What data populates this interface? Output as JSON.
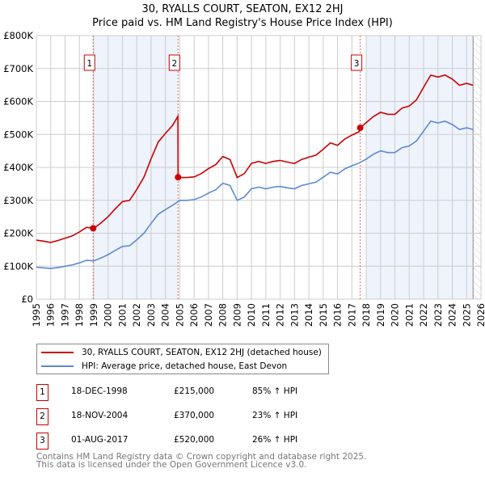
{
  "title": "30, RYALLS COURT, SEATON, EX12 2HJ",
  "subtitle": "Price paid vs. HM Land Registry's House Price Index (HPI)",
  "colors": {
    "property": "#cc0000",
    "hpi": "#5b8bd0",
    "shade": "#eef3fc",
    "grid": "#cccccc"
  },
  "chart_data": {
    "type": "line",
    "xlim": [
      1995,
      2026
    ],
    "ylim": [
      0,
      800000
    ],
    "y_ticks": [
      0,
      100000,
      200000,
      300000,
      400000,
      500000,
      600000,
      700000,
      800000
    ],
    "y_tick_labels": [
      "£0",
      "£100K",
      "£200K",
      "£300K",
      "£400K",
      "£500K",
      "£600K",
      "£700K",
      "£800K"
    ],
    "x_ticks": [
      "1995",
      "1996",
      "1997",
      "1998",
      "1999",
      "2000",
      "2001",
      "2002",
      "2003",
      "2004",
      "2005",
      "2006",
      "2007",
      "2008",
      "2009",
      "2010",
      "2011",
      "2012",
      "2013",
      "2014",
      "2015",
      "2016",
      "2017",
      "2018",
      "2019",
      "2020",
      "2021",
      "2022",
      "2023",
      "2024",
      "2025",
      "2026"
    ],
    "shaded_ranges": [
      [
        1998.96,
        2004.88
      ],
      [
        2018.0,
        2025.45
      ]
    ],
    "hatched_from": 2025.45,
    "series": [
      {
        "name": "30, RYALLS COURT, SEATON, EX12 2HJ (detached house)",
        "color": "#cc0000",
        "x": [
          1995,
          1995.5,
          1996,
          1996.5,
          1997,
          1997.5,
          1998,
          1998.5,
          1999,
          1999.5,
          2000,
          2000.5,
          2001,
          2001.5,
          2002,
          2002.5,
          2003,
          2003.5,
          2004,
          2004.5,
          2004.87,
          2004.88,
          2005,
          2005.5,
          2006,
          2006.5,
          2007,
          2007.5,
          2008,
          2008.5,
          2009,
          2009.5,
          2010,
          2010.5,
          2011,
          2011.5,
          2012,
          2012.5,
          2013,
          2013.5,
          2014,
          2014.5,
          2015,
          2015.5,
          2016,
          2016.5,
          2017,
          2017.5,
          2017.58,
          2018,
          2018.5,
          2019,
          2019.5,
          2020,
          2020.5,
          2021,
          2021.5,
          2022,
          2022.5,
          2023,
          2023.5,
          2024,
          2024.5,
          2025,
          2025.45
        ],
        "values": [
          179000,
          176000,
          172000,
          178000,
          185000,
          192000,
          204000,
          218000,
          215000,
          231000,
          250000,
          274000,
          296000,
          300000,
          333000,
          370000,
          426000,
          477000,
          503000,
          527000,
          555000,
          370000,
          369000,
          369000,
          371000,
          381000,
          396000,
          408000,
          433000,
          424000,
          369000,
          381000,
          412000,
          418000,
          412000,
          418000,
          421000,
          416000,
          412000,
          424000,
          431000,
          437000,
          455000,
          474000,
          467000,
          486000,
          498000,
          508000,
          520000,
          536000,
          554000,
          567000,
          561000,
          561000,
          580000,
          586000,
          605000,
          643000,
          680000,
          674000,
          680000,
          668000,
          649000,
          655000,
          649000
        ]
      },
      {
        "name": "HPI: Average price, detached house, East Devon",
        "color": "#5b8bd0",
        "x": [
          1995,
          1995.5,
          1996,
          1996.5,
          1997,
          1997.5,
          1998,
          1998.5,
          1999,
          1999.5,
          2000,
          2000.5,
          2001,
          2001.5,
          2002,
          2002.5,
          2003,
          2003.5,
          2004,
          2004.5,
          2005,
          2005.5,
          2006,
          2006.5,
          2007,
          2007.5,
          2008,
          2008.5,
          2009,
          2009.5,
          2010,
          2010.5,
          2011,
          2011.5,
          2012,
          2012.5,
          2013,
          2013.5,
          2014,
          2014.5,
          2015,
          2015.5,
          2016,
          2016.5,
          2017,
          2017.5,
          2018,
          2018.5,
          2019,
          2019.5,
          2020,
          2020.5,
          2021,
          2021.5,
          2022,
          2022.5,
          2023,
          2023.5,
          2024,
          2024.5,
          2025,
          2025.45
        ],
        "values": [
          97000,
          95000,
          93000,
          96000,
          100000,
          104000,
          110000,
          118000,
          116000,
          125000,
          135000,
          148000,
          160000,
          162000,
          180000,
          200000,
          230000,
          258000,
          272000,
          285000,
          300000,
          300000,
          302000,
          310000,
          322000,
          332000,
          352000,
          345000,
          300000,
          310000,
          335000,
          340000,
          335000,
          340000,
          342000,
          338000,
          335000,
          345000,
          350000,
          355000,
          370000,
          385000,
          380000,
          395000,
          405000,
          413000,
          425000,
          440000,
          450000,
          445000,
          445000,
          460000,
          465000,
          480000,
          510000,
          540000,
          535000,
          540000,
          530000,
          515000,
          520000,
          515000
        ]
      }
    ],
    "sales": [
      {
        "label": "1",
        "x": 1998.96,
        "value": 215000,
        "date": "18-DEC-1998",
        "price": "£215,000",
        "hpi_change": "85% ↑ HPI"
      },
      {
        "label": "2",
        "x": 2004.88,
        "value": 370000,
        "date": "18-NOV-2004",
        "price": "£370,000",
        "hpi_change": "23% ↑ HPI"
      },
      {
        "label": "3",
        "x": 2017.58,
        "value": 520000,
        "date": "01-AUG-2017",
        "price": "£520,000",
        "hpi_change": "26% ↑ HPI"
      }
    ]
  },
  "legend": {
    "property": "30, RYALLS COURT, SEATON, EX12 2HJ (detached house)",
    "hpi": "HPI: Average price, detached house, East Devon"
  },
  "footer": {
    "line1": "Contains HM Land Registry data © Crown copyright and database right 2025.",
    "line2": "This data is licensed under the Open Government Licence v3.0."
  }
}
